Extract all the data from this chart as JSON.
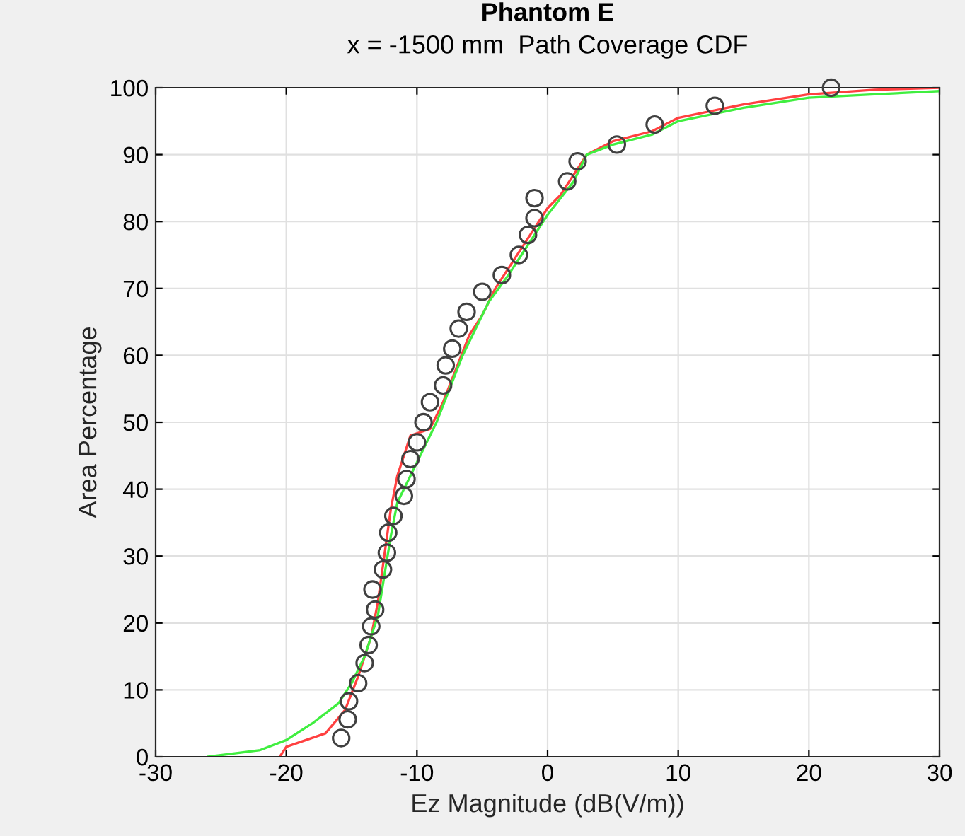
{
  "chart_data": {
    "type": "line",
    "title": "Phantom E",
    "subtitle": "x = -1500 mm  Path Coverage CDF",
    "xlabel": "Ez Magnitude (dB(V/m))",
    "ylabel": "Area Percentage",
    "xlim": [
      -30,
      30
    ],
    "xticks": [
      -30,
      -20,
      -10,
      0,
      10,
      20,
      30
    ],
    "ylim": [
      0,
      100
    ],
    "yticks": [
      0,
      10,
      20,
      30,
      40,
      50,
      60,
      70,
      80,
      90,
      100
    ],
    "grid": true,
    "series": [
      {
        "color": "#ff4040",
        "line_style": "solid",
        "marker": "none",
        "x": [
          -20.5,
          -20,
          -17,
          -15.5,
          -14.5,
          -13.5,
          -13,
          -12.5,
          -12,
          -11.5,
          -11,
          -10.5,
          -9,
          -8,
          -7,
          -6,
          -5,
          -4,
          -3,
          -2,
          -1,
          0,
          1,
          2,
          3,
          5,
          8,
          10,
          15,
          20,
          25,
          30
        ],
        "values": [
          0,
          1.5,
          3.5,
          7,
          12,
          18,
          23,
          30,
          37,
          42,
          45,
          48,
          49,
          53,
          58,
          63,
          66,
          70,
          73,
          76,
          79,
          82,
          84,
          87,
          90,
          92,
          93.5,
          95.5,
          97.5,
          99,
          99.7,
          100
        ]
      },
      {
        "color": "#40ee40",
        "line_style": "solid",
        "marker": "none",
        "x": [
          -26,
          -22,
          -20,
          -18,
          -16,
          -15,
          -14,
          -13,
          -12.5,
          -12,
          -11.5,
          -10.5,
          -9.5,
          -8.5,
          -7.5,
          -6.5,
          -5.5,
          -4.5,
          -3,
          -2,
          -1,
          0,
          1,
          2,
          3,
          5,
          8,
          10,
          15,
          20,
          25,
          30
        ],
        "values": [
          0,
          1,
          2.5,
          5,
          8,
          11,
          15,
          21,
          27,
          33,
          38,
          42,
          46,
          50,
          55,
          60,
          64,
          68,
          72,
          75,
          78,
          81,
          83.5,
          86,
          90,
          91.5,
          93,
          95,
          97,
          98.5,
          99,
          99.5
        ]
      },
      {
        "type": "scatter",
        "color": "#404040",
        "marker": "circle",
        "x": [
          -15.8,
          -15.3,
          -15.2,
          -14.5,
          -14,
          -13.7,
          -13.5,
          -13.2,
          -13.4,
          -12.6,
          -12.3,
          -12.2,
          -11.8,
          -11,
          -10.8,
          -10.5,
          -10,
          -9.5,
          -9,
          -8,
          -7.8,
          -7.3,
          -6.8,
          -6.2,
          -5,
          -3.5,
          -2.2,
          -1.5,
          -1,
          -1,
          1.5,
          2.3,
          5.3,
          8.2,
          12.8,
          21.7
        ],
        "values": [
          2.8,
          5.6,
          8.3,
          11,
          14,
          16.7,
          19.5,
          22,
          25,
          28,
          30.5,
          33.5,
          36,
          39,
          41.5,
          44.5,
          47,
          50,
          53,
          55.5,
          58.5,
          61,
          64,
          66.5,
          69.5,
          72,
          75,
          78,
          80.5,
          83.5,
          86,
          89,
          91.5,
          94.5,
          97.3,
          100
        ]
      }
    ]
  }
}
